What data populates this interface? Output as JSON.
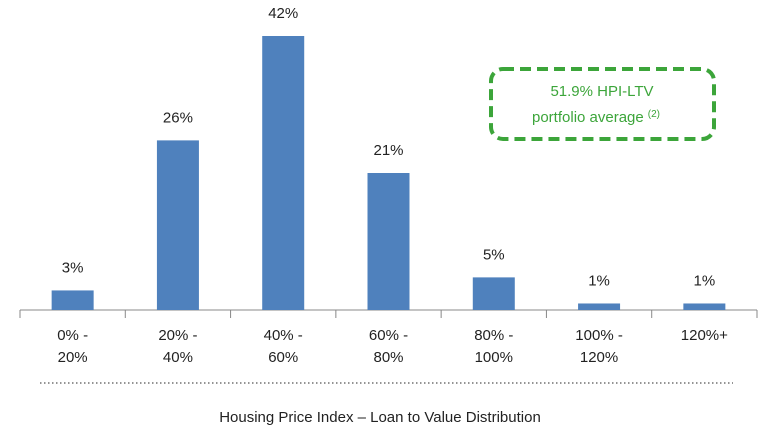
{
  "chart_data": {
    "type": "bar",
    "title": "Housing Price Index – Loan to Value Distribution",
    "categories": [
      "0% - 20%",
      "20% - 40%",
      "40% - 60%",
      "60% - 80%",
      "80% - 100%",
      "100% - 120%",
      "120%+"
    ],
    "values": [
      3,
      26,
      42,
      21,
      5,
      1,
      1
    ],
    "value_labels": [
      "3%",
      "26%",
      "42%",
      "21%",
      "5%",
      "1%",
      "1%"
    ],
    "color": "#4f81bd",
    "ylim": [
      0,
      42
    ],
    "annotation": {
      "lines": [
        "51.9% HPI-LTV",
        "portfolio average"
      ],
      "footnote": "(2)",
      "color": "#3ca53a"
    }
  }
}
